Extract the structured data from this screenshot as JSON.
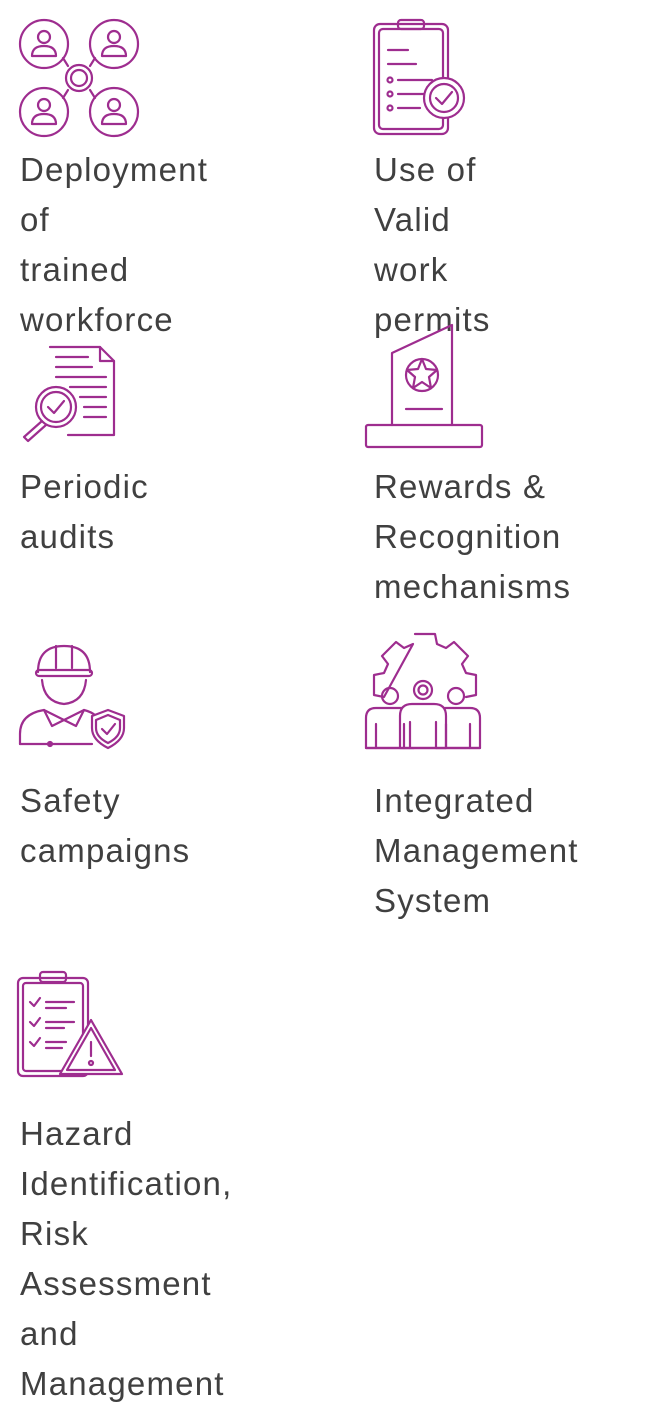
{
  "accent_color": "#9e2d8f",
  "items": [
    {
      "icon": "workforce-network-icon",
      "label": "Deployment of\ntrained\nworkforce"
    },
    {
      "icon": "checklist-approved-icon",
      "label": "Use of\nValid work\npermits"
    },
    {
      "icon": "document-magnifier-icon",
      "label": "Periodic audits"
    },
    {
      "icon": "award-trophy-icon",
      "label": "Rewards &\nRecognition\nmechanisms"
    },
    {
      "icon": "worker-shield-icon",
      "label": "Safety\ncampaigns"
    },
    {
      "icon": "gear-team-icon",
      "label": "Integrated\nManagement\nSystem"
    },
    {
      "icon": "clipboard-warning-icon",
      "label": "Hazard Identification, Risk\nAssessment and Management"
    }
  ]
}
